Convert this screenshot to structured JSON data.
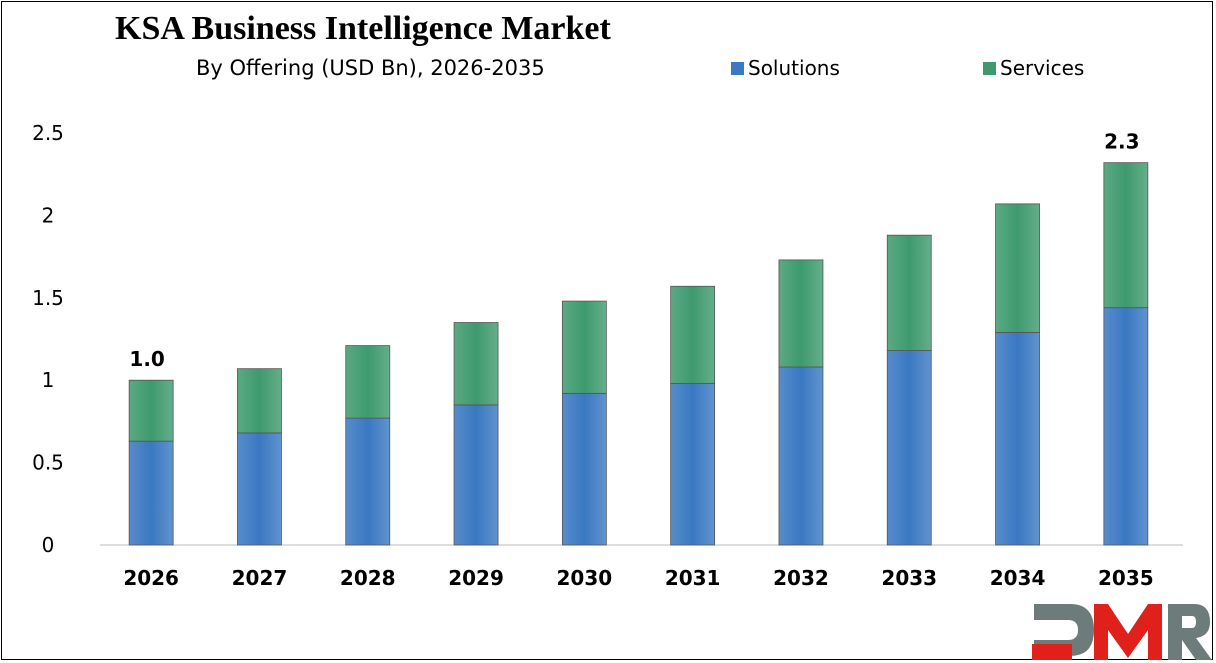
{
  "chart_data": {
    "type": "bar",
    "stacked": true,
    "title": "KSA Business Intelligence Market",
    "subtitle": "By Offering (USD Bn), 2026-2035",
    "categories": [
      "2026",
      "2027",
      "2028",
      "2029",
      "2030",
      "2031",
      "2032",
      "2033",
      "2034",
      "2035"
    ],
    "series": [
      {
        "name": "Solutions",
        "color": "#3A78C2",
        "values": [
          0.63,
          0.68,
          0.77,
          0.85,
          0.92,
          0.98,
          1.08,
          1.18,
          1.29,
          1.44
        ]
      },
      {
        "name": "Services",
        "color": "#3E9A6E",
        "values": [
          0.37,
          0.39,
          0.44,
          0.5,
          0.56,
          0.59,
          0.65,
          0.7,
          0.78,
          0.88
        ]
      }
    ],
    "data_labels": [
      {
        "category": "2026",
        "text": "1.0"
      },
      {
        "category": "2035",
        "text": "2.3"
      }
    ],
    "yticks": [
      "0",
      "0.5",
      "1",
      "1.5",
      "2",
      "2.5"
    ],
    "ylim": [
      0,
      2.5
    ],
    "grid": false,
    "legend": "top-right",
    "xlabel": "",
    "ylabel": ""
  },
  "logo": {
    "text": "DMR",
    "colors": [
      "#6E7B7B",
      "#E0201B"
    ]
  }
}
